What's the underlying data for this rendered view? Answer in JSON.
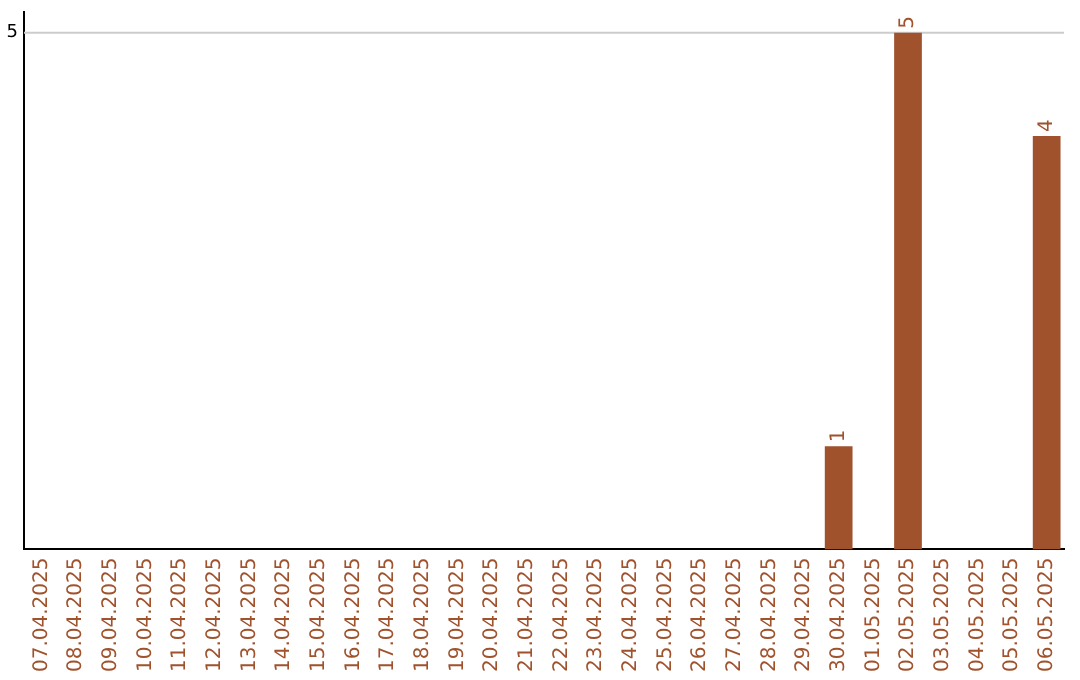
{
  "chart_data": {
    "type": "bar",
    "categories": [
      "07.04.2025",
      "08.04.2025",
      "09.04.2025",
      "10.04.2025",
      "11.04.2025",
      "12.04.2025",
      "13.04.2025",
      "14.04.2025",
      "15.04.2025",
      "16.04.2025",
      "17.04.2025",
      "18.04.2025",
      "19.04.2025",
      "20.04.2025",
      "21.04.2025",
      "22.04.2025",
      "23.04.2025",
      "24.04.2025",
      "25.04.2025",
      "26.04.2025",
      "27.04.2025",
      "28.04.2025",
      "29.04.2025",
      "30.04.2025",
      "01.05.2025",
      "02.05.2025",
      "03.05.2025",
      "04.05.2025",
      "05.05.2025",
      "06.05.2025"
    ],
    "values": [
      null,
      null,
      null,
      null,
      null,
      null,
      null,
      null,
      null,
      null,
      null,
      null,
      null,
      null,
      null,
      null,
      null,
      null,
      null,
      null,
      null,
      null,
      null,
      1,
      null,
      5,
      null,
      null,
      null,
      4
    ],
    "data_labels": true,
    "color": "#a0522d",
    "ylim": [
      0,
      5.2
    ],
    "ref_lines": [
      {
        "axis": "y",
        "value": 5,
        "label": "5",
        "color": "#cccccc"
      }
    ],
    "legend": false
  }
}
